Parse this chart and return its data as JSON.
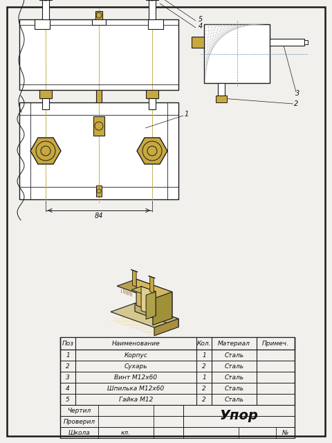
{
  "title": "Упор",
  "bg_color": "#f2f0ec",
  "border_color": "#1a1a1a",
  "table_headers": [
    "Поз",
    "Наименование",
    "Кол.",
    "Материал",
    "Примеч."
  ],
  "table_rows": [
    [
      "1",
      "Корпус",
      "1",
      "Сталь",
      ""
    ],
    [
      "2",
      "Сухарь",
      "2",
      "Сталь",
      ""
    ],
    [
      "3",
      "Винт М12х60",
      "1",
      "Сталь",
      ""
    ],
    [
      "4",
      "Шпилька М12х60",
      "2",
      "Сталь",
      ""
    ],
    [
      "5",
      "Гайка М12",
      "2",
      "Сталь",
      ""
    ]
  ],
  "hatch_color": "#888888",
  "line_color": "#1a1a1a",
  "blue_color": "#6688bb",
  "gold_color": "#c8a840",
  "gold_dark": "#8a6820",
  "gold_light": "#e0c860"
}
